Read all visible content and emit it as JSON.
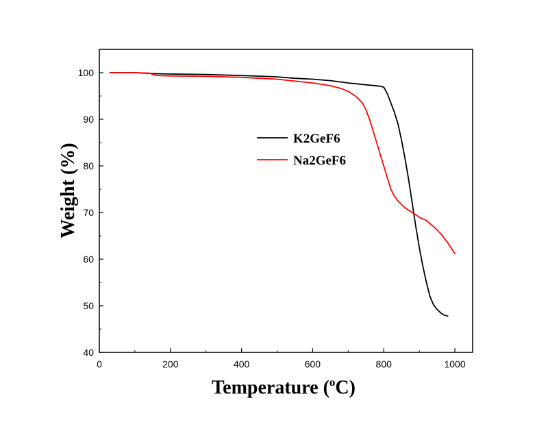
{
  "chart_data": {
    "type": "line",
    "xlabel": "Temperature (",
    "xlabel_sup": "o",
    "xlabel_unit": "C)",
    "ylabel": "Weight (%)",
    "xlim": [
      0,
      1050
    ],
    "ylim": [
      40,
      105
    ],
    "xticks": [
      0,
      200,
      400,
      600,
      800,
      1000
    ],
    "yticks": [
      40,
      50,
      60,
      70,
      80,
      90,
      100
    ],
    "grid": false,
    "legend_position": "center-right",
    "series": [
      {
        "name": "K2GeF6",
        "color": "#000000",
        "x": [
          30,
          100,
          150,
          200,
          300,
          400,
          500,
          550,
          600,
          650,
          700,
          750,
          790,
          800,
          810,
          820,
          830,
          840,
          850,
          860,
          870,
          880,
          890,
          900,
          910,
          920,
          930,
          940,
          950,
          960,
          970,
          980
        ],
        "y": [
          100,
          100,
          99.8,
          99.7,
          99.6,
          99.4,
          99.1,
          98.8,
          98.6,
          98.3,
          97.8,
          97.4,
          97.1,
          96.9,
          95.5,
          93.5,
          91.5,
          89,
          85.5,
          81.5,
          77,
          72,
          67,
          62.5,
          58.5,
          55,
          52,
          50.2,
          49.2,
          48.5,
          48,
          47.8
        ]
      },
      {
        "name": "Na2GeF6",
        "color": "#ff0000",
        "x": [
          30,
          100,
          140,
          160,
          200,
          300,
          400,
          500,
          600,
          650,
          680,
          700,
          720,
          740,
          750,
          760,
          770,
          780,
          790,
          800,
          810,
          820,
          830,
          840,
          850,
          860,
          880,
          900,
          920,
          940,
          960,
          980,
          1000
        ],
        "y": [
          100,
          100,
          99.9,
          99.4,
          99.3,
          99.2,
          99,
          98.6,
          97.8,
          97.2,
          96.6,
          96,
          95,
          93.5,
          92,
          90,
          87.5,
          85,
          82.5,
          80,
          77.5,
          75,
          73.5,
          72.5,
          71.7,
          71,
          70,
          69,
          68.3,
          67,
          65.5,
          63.5,
          61.2
        ]
      }
    ]
  }
}
